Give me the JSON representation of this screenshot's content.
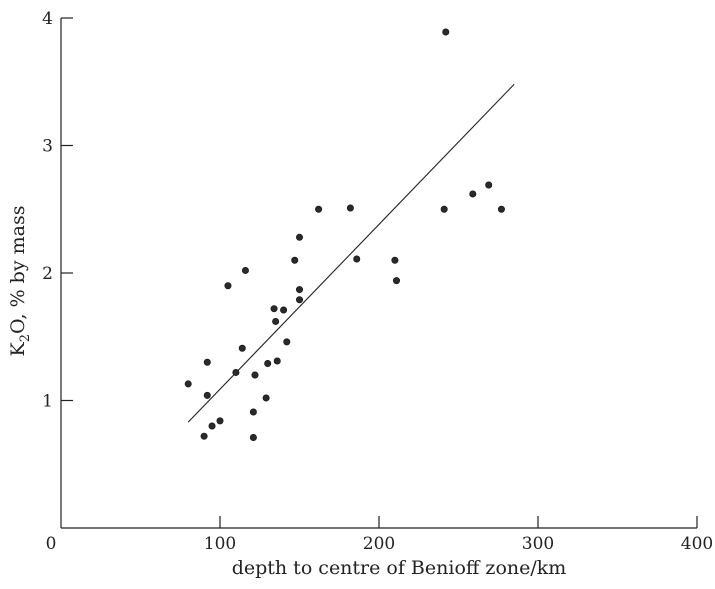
{
  "chart_data": {
    "type": "scatter",
    "title": "",
    "xlabel": "depth to centre of Benioff zone/km",
    "ylabel_main": "K",
    "ylabel_sub": "2",
    "ylabel_rest": "O, % by mass",
    "xlim": [
      0,
      400
    ],
    "ylim": [
      0,
      4
    ],
    "x_ticks": [
      0,
      100,
      200,
      300,
      400
    ],
    "x_tick_labels": [
      "0",
      "100",
      "200",
      "300",
      "400"
    ],
    "y_ticks": [
      1,
      2,
      3,
      4
    ],
    "y_tick_labels": [
      "1",
      "2",
      "3",
      "4"
    ],
    "grid": false,
    "series": [
      {
        "points": [
          {
            "x": 80,
            "y": 1.13
          },
          {
            "x": 90,
            "y": 0.72
          },
          {
            "x": 92,
            "y": 1.04
          },
          {
            "x": 92,
            "y": 1.3
          },
          {
            "x": 95,
            "y": 0.8
          },
          {
            "x": 100,
            "y": 0.84
          },
          {
            "x": 105,
            "y": 1.9
          },
          {
            "x": 110,
            "y": 1.22
          },
          {
            "x": 114,
            "y": 1.41
          },
          {
            "x": 116,
            "y": 2.02
          },
          {
            "x": 121,
            "y": 0.91
          },
          {
            "x": 121,
            "y": 0.71
          },
          {
            "x": 122,
            "y": 1.2
          },
          {
            "x": 129,
            "y": 1.02
          },
          {
            "x": 130,
            "y": 1.29
          },
          {
            "x": 134,
            "y": 1.72
          },
          {
            "x": 135,
            "y": 1.62
          },
          {
            "x": 136,
            "y": 1.31
          },
          {
            "x": 140,
            "y": 1.71
          },
          {
            "x": 142,
            "y": 1.46
          },
          {
            "x": 147,
            "y": 2.1
          },
          {
            "x": 150,
            "y": 2.28
          },
          {
            "x": 150,
            "y": 1.87
          },
          {
            "x": 150,
            "y": 1.79
          },
          {
            "x": 162,
            "y": 2.5
          },
          {
            "x": 182,
            "y": 2.51
          },
          {
            "x": 186,
            "y": 2.11
          },
          {
            "x": 210,
            "y": 2.1
          },
          {
            "x": 211,
            "y": 1.94
          },
          {
            "x": 241,
            "y": 2.5
          },
          {
            "x": 242,
            "y": 3.89
          },
          {
            "x": 259,
            "y": 2.62
          },
          {
            "x": 269,
            "y": 2.69
          },
          {
            "x": 277,
            "y": 2.5
          }
        ]
      }
    ],
    "trend_line": {
      "x": [
        80,
        285
      ],
      "y": [
        0.83,
        3.48
      ]
    }
  }
}
